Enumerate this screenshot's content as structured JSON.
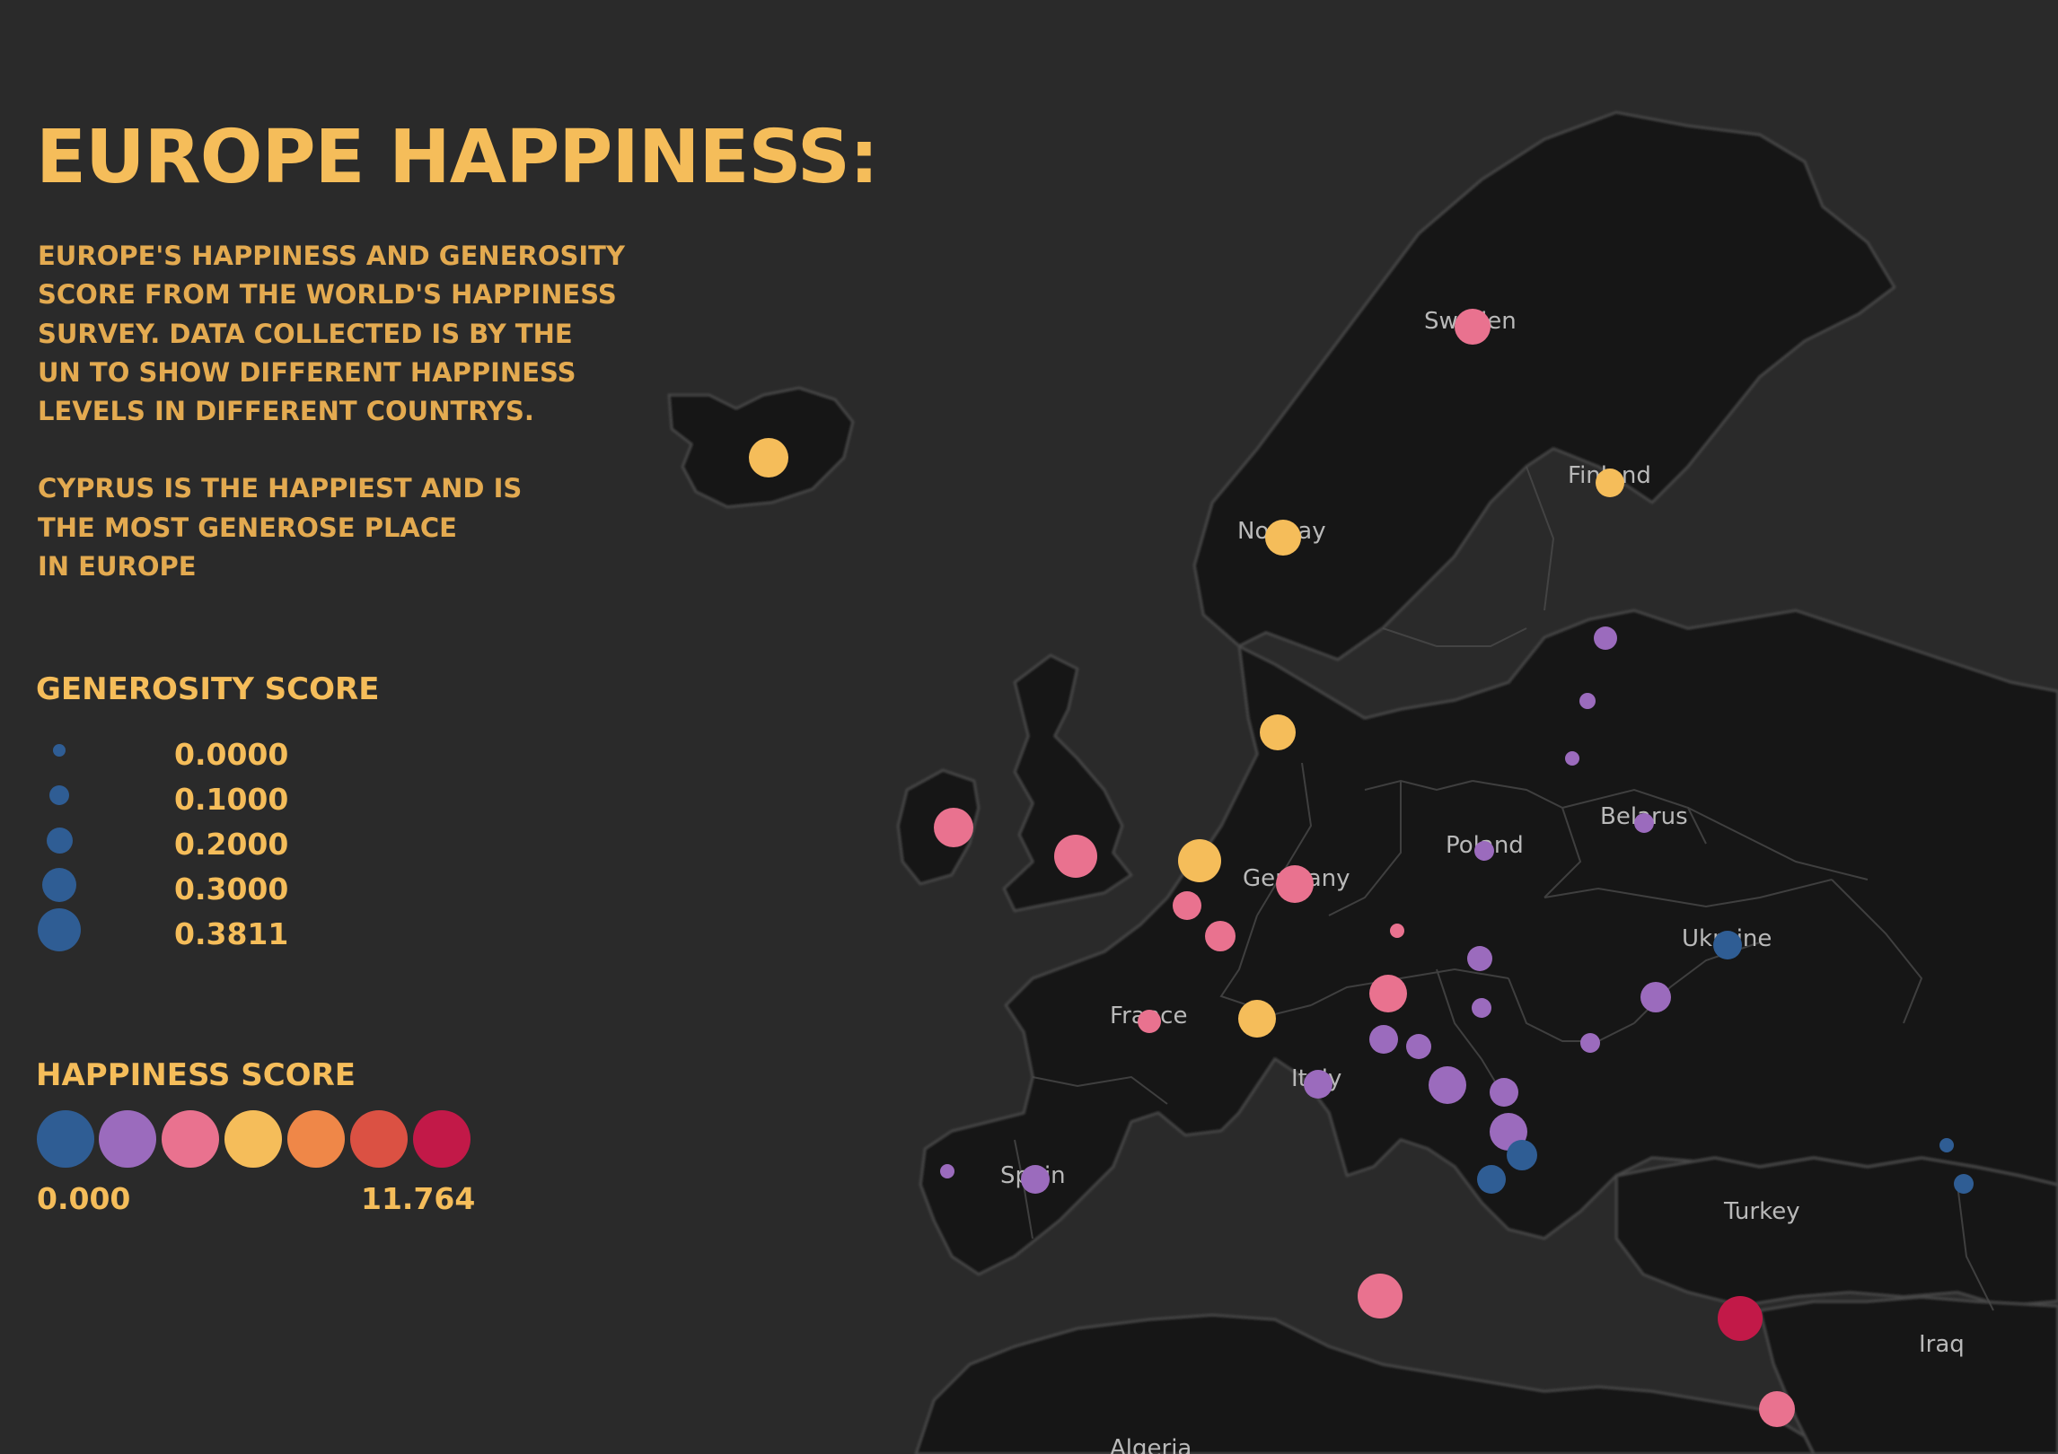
{
  "title": "EUROPE HAPPINESS:",
  "description": {
    "lines1": [
      "EUROPE'S HAPPINESS AND GENEROSITY",
      "SCORE FROM THE WORLD'S HAPPINESS",
      "SURVEY. DATA COLLECTED IS BY THE",
      "UN TO SHOW DIFFERENT HAPPINESS",
      "LEVELS IN  DIFFERENT  COUNTRYS."
    ],
    "lines2": [
      "CYPRUS IS THE  HAPPIEST AND IS",
      "THE MOST GENEROSE PLACE",
      "IN EUROPE"
    ]
  },
  "generosity_legend": {
    "title": "GENEROSITY SCORE",
    "items": [
      "0.0000",
      "0.1000",
      "0.2000",
      "0.3000",
      "0.3811"
    ]
  },
  "happiness_legend": {
    "title": "HAPPINESS SCORE",
    "colors": [
      "#2f5d94",
      "#9b6bbd",
      "#e9728f",
      "#f5bd5a",
      "#ef8748",
      "#db5143",
      "#c21948"
    ],
    "min_label": "0.000",
    "max_label": "11.764"
  },
  "map_labels": {
    "sweden": "Sweden",
    "finland": "Finland",
    "norway": "Norway",
    "poland": "Poland",
    "belarus": "Belarus",
    "germany": "Germany",
    "ukraine": "Ukraine",
    "france": "France",
    "italy": "Italy",
    "spain": "Spain",
    "turkey": "Turkey",
    "iraq": "Iraq",
    "algeria": "Algeria"
  },
  "colors": {
    "background": "#2a2a2a",
    "land": "#141414",
    "borders": "#4a4a4a",
    "text": "#f5bd5a"
  }
}
